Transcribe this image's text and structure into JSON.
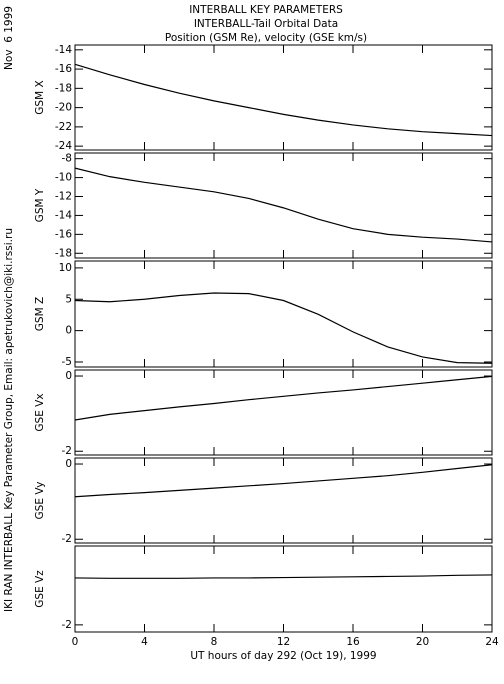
{
  "header": {
    "date": "Nov  6 1999",
    "title_lines": [
      "INTERBALL KEY PARAMETERS",
      "INTERBALL-Tail Orbital Data",
      "Position (GSM Re), velocity (GSE km/s)"
    ],
    "credit": "IKI RAN INTERBALL Key Parameter Group, Email: apetrukovich@iki.rssi.ru"
  },
  "chart_data": [
    {
      "type": "line",
      "ylabel": "GSM X",
      "x": [
        0,
        2,
        4,
        6,
        8,
        10,
        12,
        14,
        16,
        18,
        20,
        22,
        24
      ],
      "xlim": [
        0,
        24
      ],
      "xticks": [
        0,
        4,
        8,
        12,
        16,
        20,
        24
      ],
      "series": [
        {
          "color": "#000000",
          "values": [
            -15.5,
            -16.6,
            -17.6,
            -18.5,
            -19.3,
            -20.0,
            -20.7,
            -21.3,
            -21.8,
            -22.2,
            -22.5,
            -22.7,
            -22.9
          ]
        }
      ],
      "ylim": [
        -24.4,
        -13.5
      ],
      "yticks": [
        -24,
        -22,
        -20,
        -18,
        -16,
        -14
      ]
    },
    {
      "type": "line",
      "ylabel": "GSM Y",
      "x": [
        0,
        2,
        4,
        6,
        8,
        10,
        12,
        14,
        16,
        18,
        20,
        22,
        24
      ],
      "xlim": [
        0,
        24
      ],
      "xticks": [
        0,
        4,
        8,
        12,
        16,
        20,
        24
      ],
      "series": [
        {
          "color": "#000000",
          "values": [
            -9.0,
            -9.9,
            -10.5,
            -11.0,
            -11.5,
            -12.2,
            -13.2,
            -14.4,
            -15.4,
            -16.0,
            -16.3,
            -16.5,
            -16.8
          ]
        }
      ],
      "ylim": [
        -18.5,
        -7.4
      ],
      "yticks": [
        -18,
        -16,
        -14,
        -12,
        -10,
        -8
      ]
    },
    {
      "type": "line",
      "ylabel": "GSM Z",
      "x": [
        0,
        2,
        4,
        6,
        8,
        10,
        12,
        14,
        16,
        18,
        20,
        22,
        24
      ],
      "xlim": [
        0,
        24
      ],
      "xticks": [
        0,
        4,
        8,
        12,
        16,
        20,
        24
      ],
      "series": [
        {
          "color": "#000000",
          "values": [
            4.8,
            4.6,
            5.0,
            5.6,
            6.0,
            5.9,
            4.8,
            2.6,
            -0.2,
            -2.6,
            -4.2,
            -5.1,
            -5.2
          ]
        }
      ],
      "ylim": [
        -5.8,
        11.1
      ],
      "yticks": [
        -5,
        0,
        5,
        10
      ]
    },
    {
      "type": "line",
      "ylabel": "GSE Vx",
      "x": [
        0,
        2,
        4,
        6,
        8,
        10,
        12,
        14,
        16,
        18,
        20,
        22,
        24
      ],
      "xlim": [
        0,
        24
      ],
      "xticks": [
        0,
        4,
        8,
        12,
        16,
        20,
        24
      ],
      "series": [
        {
          "color": "#000000",
          "values": [
            -1.17,
            -1.02,
            -0.92,
            -0.82,
            -0.73,
            -0.63,
            -0.54,
            -0.45,
            -0.37,
            -0.28,
            -0.19,
            -0.1,
            -0.01
          ]
        }
      ],
      "ylim": [
        -2.1,
        0.16
      ],
      "yticks": [
        -2,
        0
      ]
    },
    {
      "type": "line",
      "ylabel": "GSE Vy",
      "x": [
        0,
        2,
        4,
        6,
        8,
        10,
        12,
        14,
        16,
        18,
        20,
        22,
        24
      ],
      "xlim": [
        0,
        24
      ],
      "xticks": [
        0,
        4,
        8,
        12,
        16,
        20,
        24
      ],
      "series": [
        {
          "color": "#000000",
          "values": [
            -0.87,
            -0.81,
            -0.76,
            -0.7,
            -0.64,
            -0.58,
            -0.52,
            -0.45,
            -0.38,
            -0.31,
            -0.22,
            -0.12,
            -0.02
          ]
        }
      ],
      "ylim": [
        -2.1,
        0.16
      ],
      "yticks": [
        -2,
        0
      ]
    },
    {
      "type": "line",
      "ylabel": "GSE Vz",
      "x": [
        0,
        2,
        4,
        6,
        8,
        10,
        12,
        14,
        16,
        18,
        20,
        22,
        24
      ],
      "xlim": [
        0,
        24
      ],
      "xticks": [
        0,
        4,
        8,
        12,
        16,
        20,
        24
      ],
      "series": [
        {
          "color": "#000000",
          "values": [
            -0.75,
            -0.76,
            -0.76,
            -0.76,
            -0.75,
            -0.75,
            -0.74,
            -0.73,
            -0.72,
            -0.71,
            -0.7,
            -0.68,
            -0.67
          ]
        }
      ],
      "ylim": [
        -2.19,
        0.1
      ],
      "yticks": [
        -2
      ],
      "xlabel": "UT hours of day 292 (Oct 19), 1999"
    }
  ]
}
